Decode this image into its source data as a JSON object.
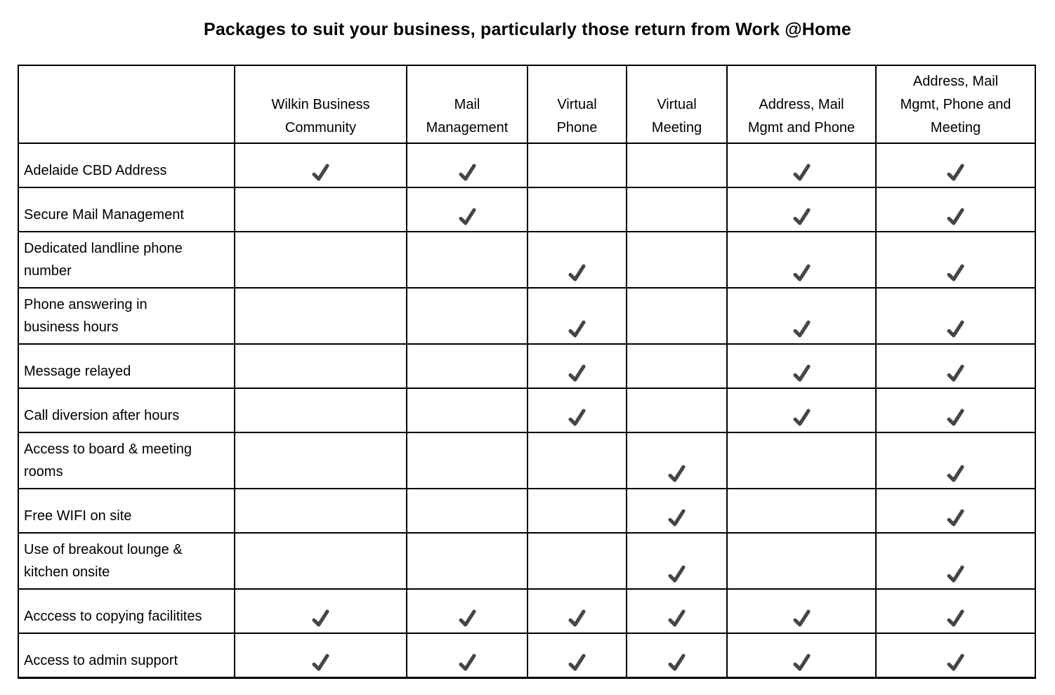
{
  "title": "Packages to suit your business, particularly those return from Work @Home",
  "table": {
    "check_icon": "check-mark",
    "check_color": "#454545",
    "border_color": "#000000",
    "columns": [
      "Wilkin Business\nCommunity",
      "Mail\nManagement",
      "Virtual\nPhone",
      "Virtual\nMeeting",
      "Address, Mail\nMgmt and Phone",
      "Address, Mail\nMgmt, Phone and\nMeeting"
    ],
    "rows": [
      {
        "feature": "Adelaide CBD Address",
        "checks": [
          true,
          true,
          false,
          false,
          true,
          true
        ]
      },
      {
        "feature": "Secure Mail Management",
        "checks": [
          false,
          true,
          false,
          false,
          true,
          true
        ]
      },
      {
        "feature": "Dedicated landline phone\nnumber",
        "checks": [
          false,
          false,
          true,
          false,
          true,
          true
        ]
      },
      {
        "feature": "Phone answering in\nbusiness hours",
        "checks": [
          false,
          false,
          true,
          false,
          true,
          true
        ]
      },
      {
        "feature": "Message relayed",
        "checks": [
          false,
          false,
          true,
          false,
          true,
          true
        ]
      },
      {
        "feature": "Call diversion after hours",
        "checks": [
          false,
          false,
          true,
          false,
          true,
          true
        ]
      },
      {
        "feature": "Access to board & meeting\nrooms",
        "checks": [
          false,
          false,
          false,
          true,
          false,
          true
        ]
      },
      {
        "feature": "Free WIFI on site",
        "checks": [
          false,
          false,
          false,
          true,
          false,
          true
        ]
      },
      {
        "feature": "Use of breakout lounge &\nkitchen onsite",
        "checks": [
          false,
          false,
          false,
          true,
          false,
          true
        ]
      },
      {
        "feature": "Acccess to copying facilitites",
        "checks": [
          true,
          true,
          true,
          true,
          true,
          true
        ]
      },
      {
        "feature": "Access to admin support",
        "checks": [
          true,
          true,
          true,
          true,
          true,
          true
        ]
      }
    ]
  }
}
